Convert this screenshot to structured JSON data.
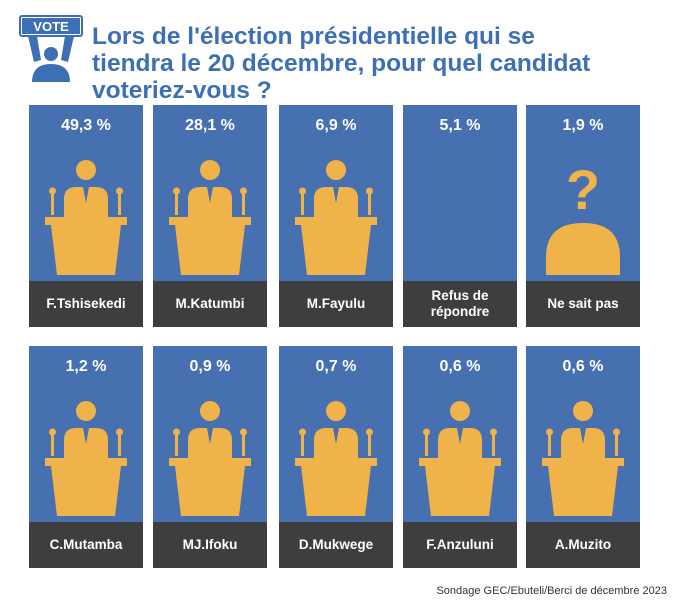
{
  "logo": {
    "text": "VOTE"
  },
  "title_lines": [
    "Lors de l'élection présidentielle qui se",
    "tiendra le 20 décembre, pour quel candidat",
    "voteriez-vous ?"
  ],
  "colors": {
    "title": "#3d6fb5",
    "card": "#4670b0",
    "label": "#3e3e3e",
    "icon": "#f0b34a"
  },
  "chart_data": {
    "type": "bar",
    "title": "Lors de l'élection présidentielle qui se tiendra le 20 décembre, pour quel candidat voteriez-vous ?",
    "categories": [
      "F.Tshisekedi",
      "M.Katumbi",
      "M.Fayulu",
      "Refus de\nrépondre",
      "Ne sait pas",
      "C.Mutamba",
      "MJ.Ifoku",
      "D.Mukwege",
      "F.Anzuluni",
      "A.Muzito"
    ],
    "values": [
      49.3,
      28.1,
      6.9,
      5.1,
      1.9,
      1.2,
      0.9,
      0.7,
      0.6,
      0.6
    ],
    "value_labels": [
      "49,3 %",
      "28,1 %",
      "6,9 %",
      "5,1 %",
      "1,9 %",
      "1,2 %",
      "0,9 %",
      "0,7 %",
      "0,6 %",
      "0,6 %"
    ],
    "icons": [
      "podium",
      "podium",
      "podium",
      "none",
      "question",
      "podium",
      "podium",
      "podium",
      "podium",
      "podium"
    ]
  },
  "source": "Sondage GEC/Ebuteli/Berci de décembre 2023"
}
